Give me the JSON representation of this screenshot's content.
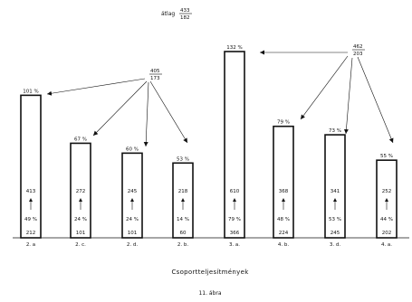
{
  "header": {
    "avg_label": "átlag",
    "avg_num": "433",
    "avg_den": "182"
  },
  "group_fractions": [
    {
      "num": "405",
      "den": "173"
    },
    {
      "num": "462",
      "den": "203"
    }
  ],
  "chart_data": {
    "type": "bar",
    "categories": [
      "2. a",
      "2. c.",
      "2. d.",
      "2. b.",
      "3. a.",
      "4. b.",
      "3. d.",
      "4. a."
    ],
    "values": [
      101,
      67,
      60,
      53,
      132,
      79,
      73,
      55
    ],
    "value_labels": [
      "101 %",
      "67 %",
      "60 %",
      "53 %",
      "132 %",
      "79 %",
      "73 %",
      "55 %"
    ],
    "upper_counts": [
      "413",
      "272",
      "245",
      "218",
      "610",
      "368",
      "341",
      "252"
    ],
    "inner_pct": [
      "49 %",
      "24 %",
      "24 %",
      "14 %",
      "79 %",
      "48 %",
      "53 %",
      "44 %"
    ],
    "base_counts": [
      "212",
      "101",
      "101",
      "60",
      "366",
      "224",
      "245",
      "202"
    ],
    "ylim": [
      0,
      140
    ],
    "xlabel": "",
    "ylabel": ""
  },
  "caption": "Csoportteljesítmények",
  "figure_label": "11. ábra"
}
